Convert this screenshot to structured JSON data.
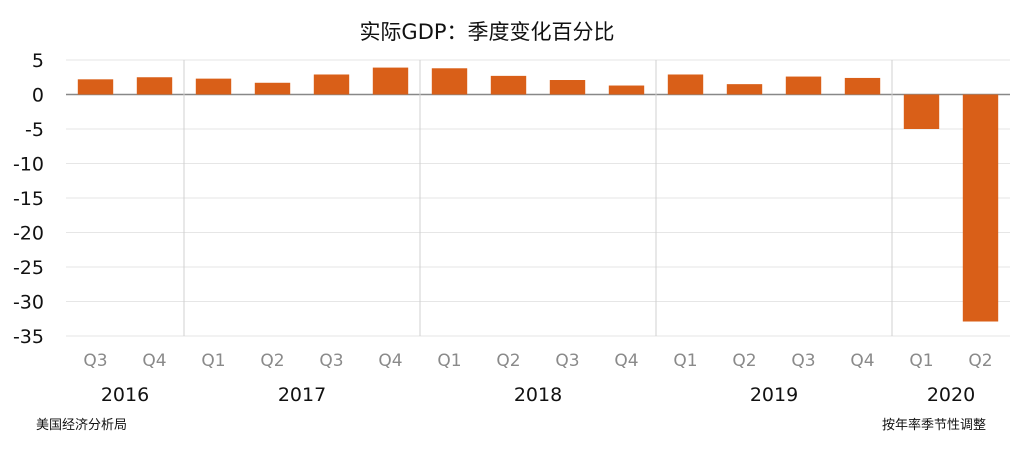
{
  "chart_data": {
    "type": "bar",
    "title": "实际GDP：季度变化百分比",
    "categories": [
      "Q3",
      "Q4",
      "Q1",
      "Q2",
      "Q3",
      "Q4",
      "Q1",
      "Q2",
      "Q3",
      "Q4",
      "Q1",
      "Q2",
      "Q3",
      "Q4",
      "Q1",
      "Q2"
    ],
    "years": [
      {
        "label": "2016",
        "count": 2
      },
      {
        "label": "2017",
        "count": 4
      },
      {
        "label": "2018",
        "count": 4
      },
      {
        "label": "2019",
        "count": 4
      },
      {
        "label": "2020",
        "count": 2
      }
    ],
    "values": [
      2.2,
      2.5,
      2.3,
      1.7,
      2.9,
      3.9,
      3.8,
      2.7,
      2.1,
      1.3,
      2.9,
      1.5,
      2.6,
      2.4,
      -5.0,
      -32.9
    ],
    "ylim": [
      -35,
      5
    ],
    "yticks": [
      5,
      0,
      -5,
      -10,
      -15,
      -20,
      -25,
      -30,
      -35
    ],
    "grid": true,
    "bar_color": "#D95F18",
    "source": "美国经济分析局",
    "note": "按年率季节性调整"
  }
}
